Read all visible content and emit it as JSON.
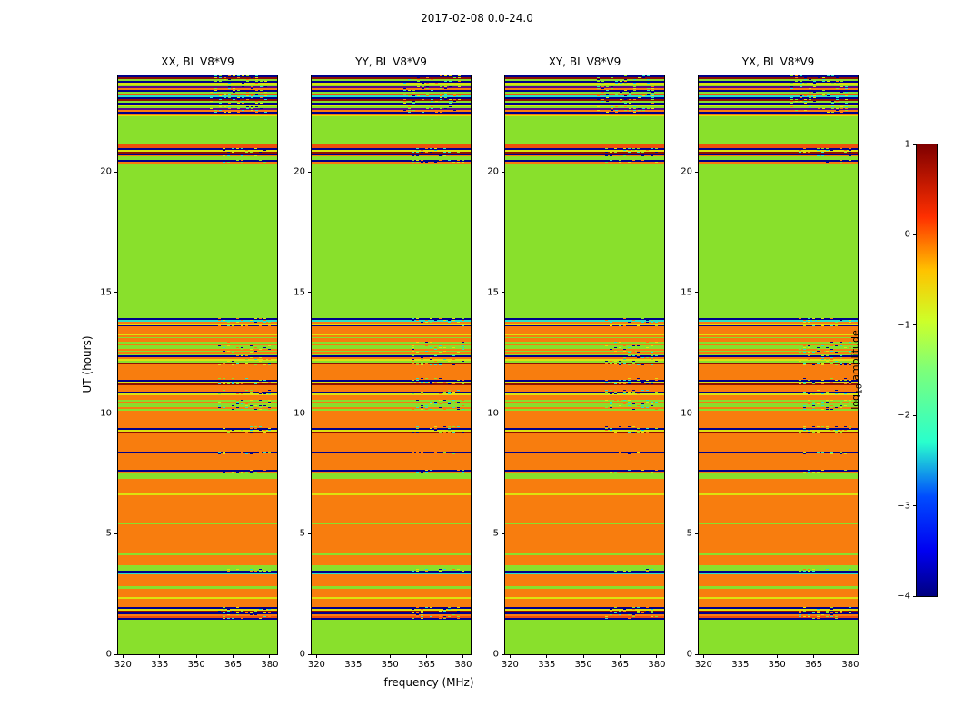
{
  "title": "2017-02-08 0.0-24.0",
  "xlabel": "frequency (MHz)",
  "ylabel": "UT (hours)",
  "panels": [
    {
      "title": "XX, BL V8*V9"
    },
    {
      "title": "YY, BL V8*V9"
    },
    {
      "title": "XY, BL V8*V9"
    },
    {
      "title": "YX, BL V8*V9"
    }
  ],
  "colorbar": {
    "label_prefix": "log",
    "label_sub": "10",
    "label_suffix": " amplitude",
    "tick_labels": [
      "1",
      "0",
      "−1",
      "−2",
      "−3",
      "−4"
    ]
  },
  "chart_data": {
    "type": "heatmap",
    "title": "2017-02-08 0.0-24.0",
    "xlabel": "frequency (MHz)",
    "ylabel": "UT (hours)",
    "panel_titles": [
      "XX, BL V8*V9",
      "YY, BL V8*V9",
      "XY, BL V8*V9",
      "YX, BL V8*V9"
    ],
    "x_range": [
      318,
      383
    ],
    "y_range": [
      0,
      24
    ],
    "x_tick_values": [
      320,
      335,
      350,
      365,
      380
    ],
    "x_tick_labels": [
      "320",
      "335",
      "350",
      "365",
      "380"
    ],
    "y_tick_values": [
      0,
      5,
      10,
      15,
      20
    ],
    "y_tick_labels": [
      "0",
      "5",
      "10",
      "15",
      "20"
    ],
    "value_label": "log10 amplitude",
    "value_range": [
      -4,
      1
    ],
    "colormap": "jet",
    "colorbar_ticks": [
      {
        "label": "1",
        "value": 1
      },
      {
        "label": "0",
        "value": 0
      },
      {
        "label": "−1",
        "value": -1
      },
      {
        "label": "−2",
        "value": -2
      },
      {
        "label": "−3",
        "value": -3
      },
      {
        "label": "−4",
        "value": -4
      }
    ],
    "colorbar_gradient": [
      {
        "pos": 0.0,
        "color": "#800000"
      },
      {
        "pos": 0.16,
        "color": "#ff3000"
      },
      {
        "pos": 0.28,
        "color": "#ffc400"
      },
      {
        "pos": 0.39,
        "color": "#ceff29"
      },
      {
        "pos": 0.5,
        "color": "#7dff7a"
      },
      {
        "pos": 0.66,
        "color": "#29ffce"
      },
      {
        "pos": 0.78,
        "color": "#004cff"
      },
      {
        "pos": 0.9,
        "color": "#0000f1"
      },
      {
        "pos": 1.0,
        "color": "#000080"
      }
    ],
    "colors": {
      "green": "#89e02c",
      "orange": "#f87d0e",
      "red": "#ee4f0b",
      "yellow": "#dde20e",
      "cyan": "#2bdfc5",
      "navy": "#000089",
      "darkred": "#8c0f05",
      "purple": "#5a0a8c"
    },
    "patterns": {
      "darkmix": [
        "navy",
        "yellow",
        "darkred",
        "navy",
        "orange",
        "red",
        "navy",
        "green"
      ],
      "cyanmix": [
        "green",
        "navy",
        "cyan",
        "orange",
        "green"
      ],
      "darkline": [
        "navy",
        "orange"
      ],
      "orangedark": [
        "orange",
        "navy",
        "yellow",
        "darkred",
        "orange"
      ],
      "greenorange": [
        "green",
        "orange",
        "green",
        "green",
        "orange"
      ],
      "mixed": [
        "orange",
        "green",
        "navy",
        "orange",
        "yellow",
        "green",
        "darkred",
        "orange"
      ],
      "orangeyellow": [
        "orange",
        "yellow",
        "orange",
        "green",
        "orange"
      ],
      "cyandark": [
        "navy",
        "cyan",
        "orange",
        "yellow",
        "navy",
        "green",
        "darkred"
      ],
      "topmix": [
        "navy",
        "darkred",
        "green",
        "navy",
        "yellow",
        "green",
        "purple",
        "orange",
        "navy",
        "green",
        "red",
        "cyan"
      ]
    },
    "dash_palette": [
      "yellow",
      "cyan",
      "green",
      "navy",
      "orange"
    ],
    "dash_x_default": [
      0.63,
      0.97
    ],
    "bands": [
      {
        "y0": 0.0,
        "y1": 1.45,
        "type": "solid",
        "color": "green"
      },
      {
        "y0": 1.45,
        "y1": 1.95,
        "type": "stripes",
        "pattern": "darkmix",
        "dashes": true
      },
      {
        "y0": 1.95,
        "y1": 2.28,
        "type": "solid",
        "color": "orange"
      },
      {
        "y0": 2.28,
        "y1": 2.36,
        "type": "solid",
        "color": "yellow"
      },
      {
        "y0": 2.36,
        "y1": 2.72,
        "type": "solid",
        "color": "orange"
      },
      {
        "y0": 2.72,
        "y1": 2.82,
        "type": "solid",
        "color": "green"
      },
      {
        "y0": 2.82,
        "y1": 3.3,
        "type": "solid",
        "color": "orange"
      },
      {
        "y0": 3.3,
        "y1": 3.55,
        "type": "stripes",
        "pattern": "cyanmix",
        "dashes": true
      },
      {
        "y0": 3.55,
        "y1": 3.7,
        "type": "solid",
        "color": "green"
      },
      {
        "y0": 3.7,
        "y1": 4.1,
        "type": "solid",
        "color": "orange"
      },
      {
        "y0": 4.1,
        "y1": 4.18,
        "type": "solid",
        "color": "green"
      },
      {
        "y0": 4.18,
        "y1": 5.4,
        "type": "solid",
        "color": "orange"
      },
      {
        "y0": 5.4,
        "y1": 5.48,
        "type": "solid",
        "color": "green"
      },
      {
        "y0": 5.48,
        "y1": 6.6,
        "type": "solid",
        "color": "orange"
      },
      {
        "y0": 6.6,
        "y1": 6.66,
        "type": "solid",
        "color": "yellow"
      },
      {
        "y0": 6.66,
        "y1": 7.28,
        "type": "solid",
        "color": "orange"
      },
      {
        "y0": 7.28,
        "y1": 7.55,
        "type": "solid",
        "color": "green"
      },
      {
        "y0": 7.55,
        "y1": 7.64,
        "type": "stripes",
        "pattern": "darkline",
        "dashes": true
      },
      {
        "y0": 7.64,
        "y1": 8.3,
        "type": "solid",
        "color": "orange"
      },
      {
        "y0": 8.3,
        "y1": 8.42,
        "type": "stripes",
        "pattern": "darkline",
        "dashes": true
      },
      {
        "y0": 8.42,
        "y1": 9.18,
        "type": "solid",
        "color": "orange"
      },
      {
        "y0": 9.18,
        "y1": 9.45,
        "type": "stripes",
        "pattern": "orangedark",
        "dashes": true
      },
      {
        "y0": 9.45,
        "y1": 10.1,
        "type": "solid",
        "color": "orange"
      },
      {
        "y0": 10.1,
        "y1": 10.55,
        "type": "stripes",
        "pattern": "greenorange",
        "dashes": true
      },
      {
        "y0": 10.55,
        "y1": 10.75,
        "type": "solid",
        "color": "orange"
      },
      {
        "y0": 10.75,
        "y1": 10.95,
        "type": "stripes",
        "pattern": "orangedark",
        "dashes": true
      },
      {
        "y0": 10.95,
        "y1": 11.15,
        "type": "solid",
        "color": "orange"
      },
      {
        "y0": 11.15,
        "y1": 11.45,
        "type": "stripes",
        "pattern": "orangedark",
        "dashes": true
      },
      {
        "y0": 11.45,
        "y1": 12.0,
        "type": "solid",
        "color": "orange"
      },
      {
        "y0": 12.0,
        "y1": 12.55,
        "type": "stripes",
        "pattern": "mixed",
        "dashes": true
      },
      {
        "y0": 12.55,
        "y1": 12.95,
        "type": "stripes",
        "pattern": "greenorange",
        "dashes": true
      },
      {
        "y0": 12.95,
        "y1": 13.12,
        "type": "solid",
        "color": "orange"
      },
      {
        "y0": 13.12,
        "y1": 13.38,
        "type": "stripes",
        "pattern": "orangeyellow"
      },
      {
        "y0": 13.38,
        "y1": 13.6,
        "type": "solid",
        "color": "orange"
      },
      {
        "y0": 13.6,
        "y1": 13.95,
        "type": "stripes",
        "pattern": "cyandark",
        "dashes": true
      },
      {
        "y0": 13.95,
        "y1": 20.35,
        "type": "solid",
        "color": "green"
      },
      {
        "y0": 20.35,
        "y1": 20.5,
        "type": "stripes",
        "pattern": "darkline",
        "dashes": true
      },
      {
        "y0": 20.5,
        "y1": 20.65,
        "type": "solid",
        "color": "green"
      },
      {
        "y0": 20.65,
        "y1": 21.0,
        "type": "stripes",
        "pattern": "darkmix",
        "dashes": true
      },
      {
        "y0": 21.0,
        "y1": 21.18,
        "type": "solid",
        "color": "red"
      },
      {
        "y0": 21.18,
        "y1": 22.3,
        "type": "solid",
        "color": "green"
      },
      {
        "y0": 22.3,
        "y1": 22.42,
        "type": "stripes",
        "pattern": "orangeyellow"
      },
      {
        "y0": 22.42,
        "y1": 24.0,
        "type": "stripes",
        "pattern": "topmix",
        "dashes": true,
        "dash_x": [
          0.58,
          0.93
        ]
      }
    ]
  }
}
